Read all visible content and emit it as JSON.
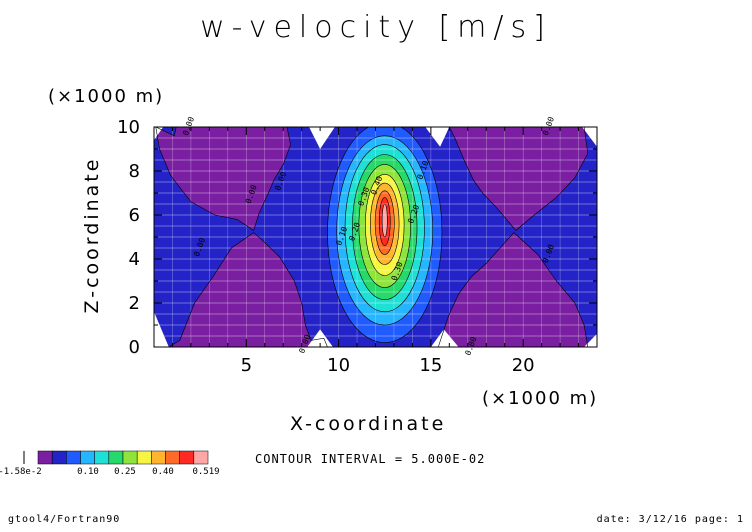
{
  "title": "w-velocity [m/s]",
  "y_unit": "(×1000 m)",
  "x_unit": "(×1000 m)",
  "xlabel": "X-coordinate",
  "ylabel": "Z-coordinate",
  "contour_interval": "CONTOUR INTERVAL = 5.000E-02",
  "footer_left": "gtool4/Fortran90",
  "footer_right": "date: 3/12/16 page: 1",
  "colors": {
    "purple": "#7b1fa2",
    "blue_dark": "#2323c8",
    "blue": "#1f5bff",
    "sky": "#26b5ff",
    "cyan": "#1fe0d4",
    "green": "#26d96a",
    "light_green": "#8ee43a",
    "yellow": "#f5f542",
    "orange": "#ffb52e",
    "red_orange": "#ff6a26",
    "red": "#ff2a24",
    "pink": "#ffa6a6"
  },
  "chart_data": {
    "type": "contour",
    "title": "w-velocity [m/s]",
    "xlabel": "X-coordinate",
    "ylabel": "Z-coordinate",
    "x_unit": "×1000 m",
    "y_unit": "×1000 m",
    "xlim": [
      0,
      24
    ],
    "ylim": [
      0,
      10
    ],
    "x_ticks": [
      5,
      10,
      15,
      20
    ],
    "y_ticks": [
      0,
      2,
      4,
      6,
      8,
      10
    ],
    "grid": true,
    "contour_interval": 0.05,
    "max_value": 0.519,
    "colorbar": {
      "labels": [
        "-1.58e-2",
        "0.10",
        "0.25",
        "0.40",
        "0.519"
      ],
      "colors": [
        "#7b1fa2",
        "#2323c8",
        "#1f5bff",
        "#26b5ff",
        "#1fe0d4",
        "#26d96a",
        "#8ee43a",
        "#f5f542",
        "#ffb52e",
        "#ff6a26",
        "#ff2a24",
        "#ffa6a6"
      ]
    },
    "contour_labels": [
      {
        "text": "0.00",
        "x": 2.0,
        "y": 10.0
      },
      {
        "text": "0.00",
        "x": 21.5,
        "y": 10.0
      },
      {
        "text": "0.00",
        "x": 8.3,
        "y": 0.1
      },
      {
        "text": "0.00",
        "x": 17.3,
        "y": 0.0
      },
      {
        "text": "0.00",
        "x": 5.4,
        "y": 6.9
      },
      {
        "text": "0.00",
        "x": 2.6,
        "y": 4.5
      },
      {
        "text": "0.00",
        "x": 7.0,
        "y": 7.5
      },
      {
        "text": "0.00",
        "x": 21.5,
        "y": 4.2
      },
      {
        "text": "0.10",
        "x": 10.3,
        "y": 5.0
      },
      {
        "text": "0.10",
        "x": 14.7,
        "y": 8.0
      },
      {
        "text": "0.20",
        "x": 11.0,
        "y": 5.2
      },
      {
        "text": "0.20",
        "x": 14.2,
        "y": 6.0
      },
      {
        "text": "0.30",
        "x": 11.5,
        "y": 6.8
      },
      {
        "text": "0.30",
        "x": 13.3,
        "y": 3.4
      },
      {
        "text": "0.40",
        "x": 12.2,
        "y": 7.3
      }
    ]
  }
}
